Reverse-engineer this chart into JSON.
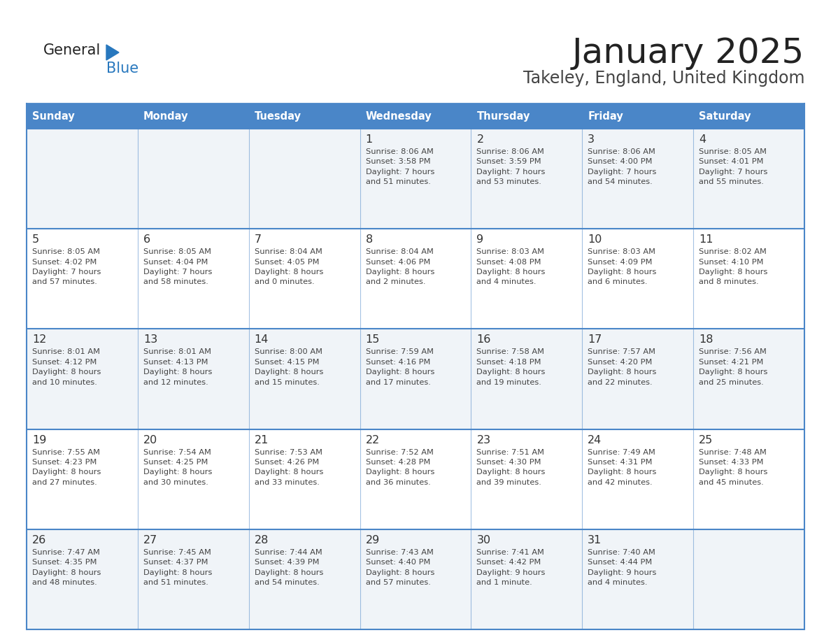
{
  "title": "January 2025",
  "subtitle": "Takeley, England, United Kingdom",
  "days_of_week": [
    "Sunday",
    "Monday",
    "Tuesday",
    "Wednesday",
    "Thursday",
    "Friday",
    "Saturday"
  ],
  "header_bg": "#4a86c8",
  "header_text": "#ffffff",
  "row_bg_even": "#f0f4f8",
  "row_bg_odd": "#ffffff",
  "cell_text_color": "#444444",
  "day_num_color": "#333333",
  "border_color": "#4a86c8",
  "title_color": "#222222",
  "subtitle_color": "#444444",
  "logo_general_color": "#222222",
  "logo_blue_color": "#2878be",
  "calendar_data": [
    [
      {
        "day": null,
        "info": null
      },
      {
        "day": null,
        "info": null
      },
      {
        "day": null,
        "info": null
      },
      {
        "day": 1,
        "info": "Sunrise: 8:06 AM\nSunset: 3:58 PM\nDaylight: 7 hours\nand 51 minutes."
      },
      {
        "day": 2,
        "info": "Sunrise: 8:06 AM\nSunset: 3:59 PM\nDaylight: 7 hours\nand 53 minutes."
      },
      {
        "day": 3,
        "info": "Sunrise: 8:06 AM\nSunset: 4:00 PM\nDaylight: 7 hours\nand 54 minutes."
      },
      {
        "day": 4,
        "info": "Sunrise: 8:05 AM\nSunset: 4:01 PM\nDaylight: 7 hours\nand 55 minutes."
      }
    ],
    [
      {
        "day": 5,
        "info": "Sunrise: 8:05 AM\nSunset: 4:02 PM\nDaylight: 7 hours\nand 57 minutes."
      },
      {
        "day": 6,
        "info": "Sunrise: 8:05 AM\nSunset: 4:04 PM\nDaylight: 7 hours\nand 58 minutes."
      },
      {
        "day": 7,
        "info": "Sunrise: 8:04 AM\nSunset: 4:05 PM\nDaylight: 8 hours\nand 0 minutes."
      },
      {
        "day": 8,
        "info": "Sunrise: 8:04 AM\nSunset: 4:06 PM\nDaylight: 8 hours\nand 2 minutes."
      },
      {
        "day": 9,
        "info": "Sunrise: 8:03 AM\nSunset: 4:08 PM\nDaylight: 8 hours\nand 4 minutes."
      },
      {
        "day": 10,
        "info": "Sunrise: 8:03 AM\nSunset: 4:09 PM\nDaylight: 8 hours\nand 6 minutes."
      },
      {
        "day": 11,
        "info": "Sunrise: 8:02 AM\nSunset: 4:10 PM\nDaylight: 8 hours\nand 8 minutes."
      }
    ],
    [
      {
        "day": 12,
        "info": "Sunrise: 8:01 AM\nSunset: 4:12 PM\nDaylight: 8 hours\nand 10 minutes."
      },
      {
        "day": 13,
        "info": "Sunrise: 8:01 AM\nSunset: 4:13 PM\nDaylight: 8 hours\nand 12 minutes."
      },
      {
        "day": 14,
        "info": "Sunrise: 8:00 AM\nSunset: 4:15 PM\nDaylight: 8 hours\nand 15 minutes."
      },
      {
        "day": 15,
        "info": "Sunrise: 7:59 AM\nSunset: 4:16 PM\nDaylight: 8 hours\nand 17 minutes."
      },
      {
        "day": 16,
        "info": "Sunrise: 7:58 AM\nSunset: 4:18 PM\nDaylight: 8 hours\nand 19 minutes."
      },
      {
        "day": 17,
        "info": "Sunrise: 7:57 AM\nSunset: 4:20 PM\nDaylight: 8 hours\nand 22 minutes."
      },
      {
        "day": 18,
        "info": "Sunrise: 7:56 AM\nSunset: 4:21 PM\nDaylight: 8 hours\nand 25 minutes."
      }
    ],
    [
      {
        "day": 19,
        "info": "Sunrise: 7:55 AM\nSunset: 4:23 PM\nDaylight: 8 hours\nand 27 minutes."
      },
      {
        "day": 20,
        "info": "Sunrise: 7:54 AM\nSunset: 4:25 PM\nDaylight: 8 hours\nand 30 minutes."
      },
      {
        "day": 21,
        "info": "Sunrise: 7:53 AM\nSunset: 4:26 PM\nDaylight: 8 hours\nand 33 minutes."
      },
      {
        "day": 22,
        "info": "Sunrise: 7:52 AM\nSunset: 4:28 PM\nDaylight: 8 hours\nand 36 minutes."
      },
      {
        "day": 23,
        "info": "Sunrise: 7:51 AM\nSunset: 4:30 PM\nDaylight: 8 hours\nand 39 minutes."
      },
      {
        "day": 24,
        "info": "Sunrise: 7:49 AM\nSunset: 4:31 PM\nDaylight: 8 hours\nand 42 minutes."
      },
      {
        "day": 25,
        "info": "Sunrise: 7:48 AM\nSunset: 4:33 PM\nDaylight: 8 hours\nand 45 minutes."
      }
    ],
    [
      {
        "day": 26,
        "info": "Sunrise: 7:47 AM\nSunset: 4:35 PM\nDaylight: 8 hours\nand 48 minutes."
      },
      {
        "day": 27,
        "info": "Sunrise: 7:45 AM\nSunset: 4:37 PM\nDaylight: 8 hours\nand 51 minutes."
      },
      {
        "day": 28,
        "info": "Sunrise: 7:44 AM\nSunset: 4:39 PM\nDaylight: 8 hours\nand 54 minutes."
      },
      {
        "day": 29,
        "info": "Sunrise: 7:43 AM\nSunset: 4:40 PM\nDaylight: 8 hours\nand 57 minutes."
      },
      {
        "day": 30,
        "info": "Sunrise: 7:41 AM\nSunset: 4:42 PM\nDaylight: 9 hours\nand 1 minute."
      },
      {
        "day": 31,
        "info": "Sunrise: 7:40 AM\nSunset: 4:44 PM\nDaylight: 9 hours\nand 4 minutes."
      },
      {
        "day": null,
        "info": null
      }
    ]
  ]
}
